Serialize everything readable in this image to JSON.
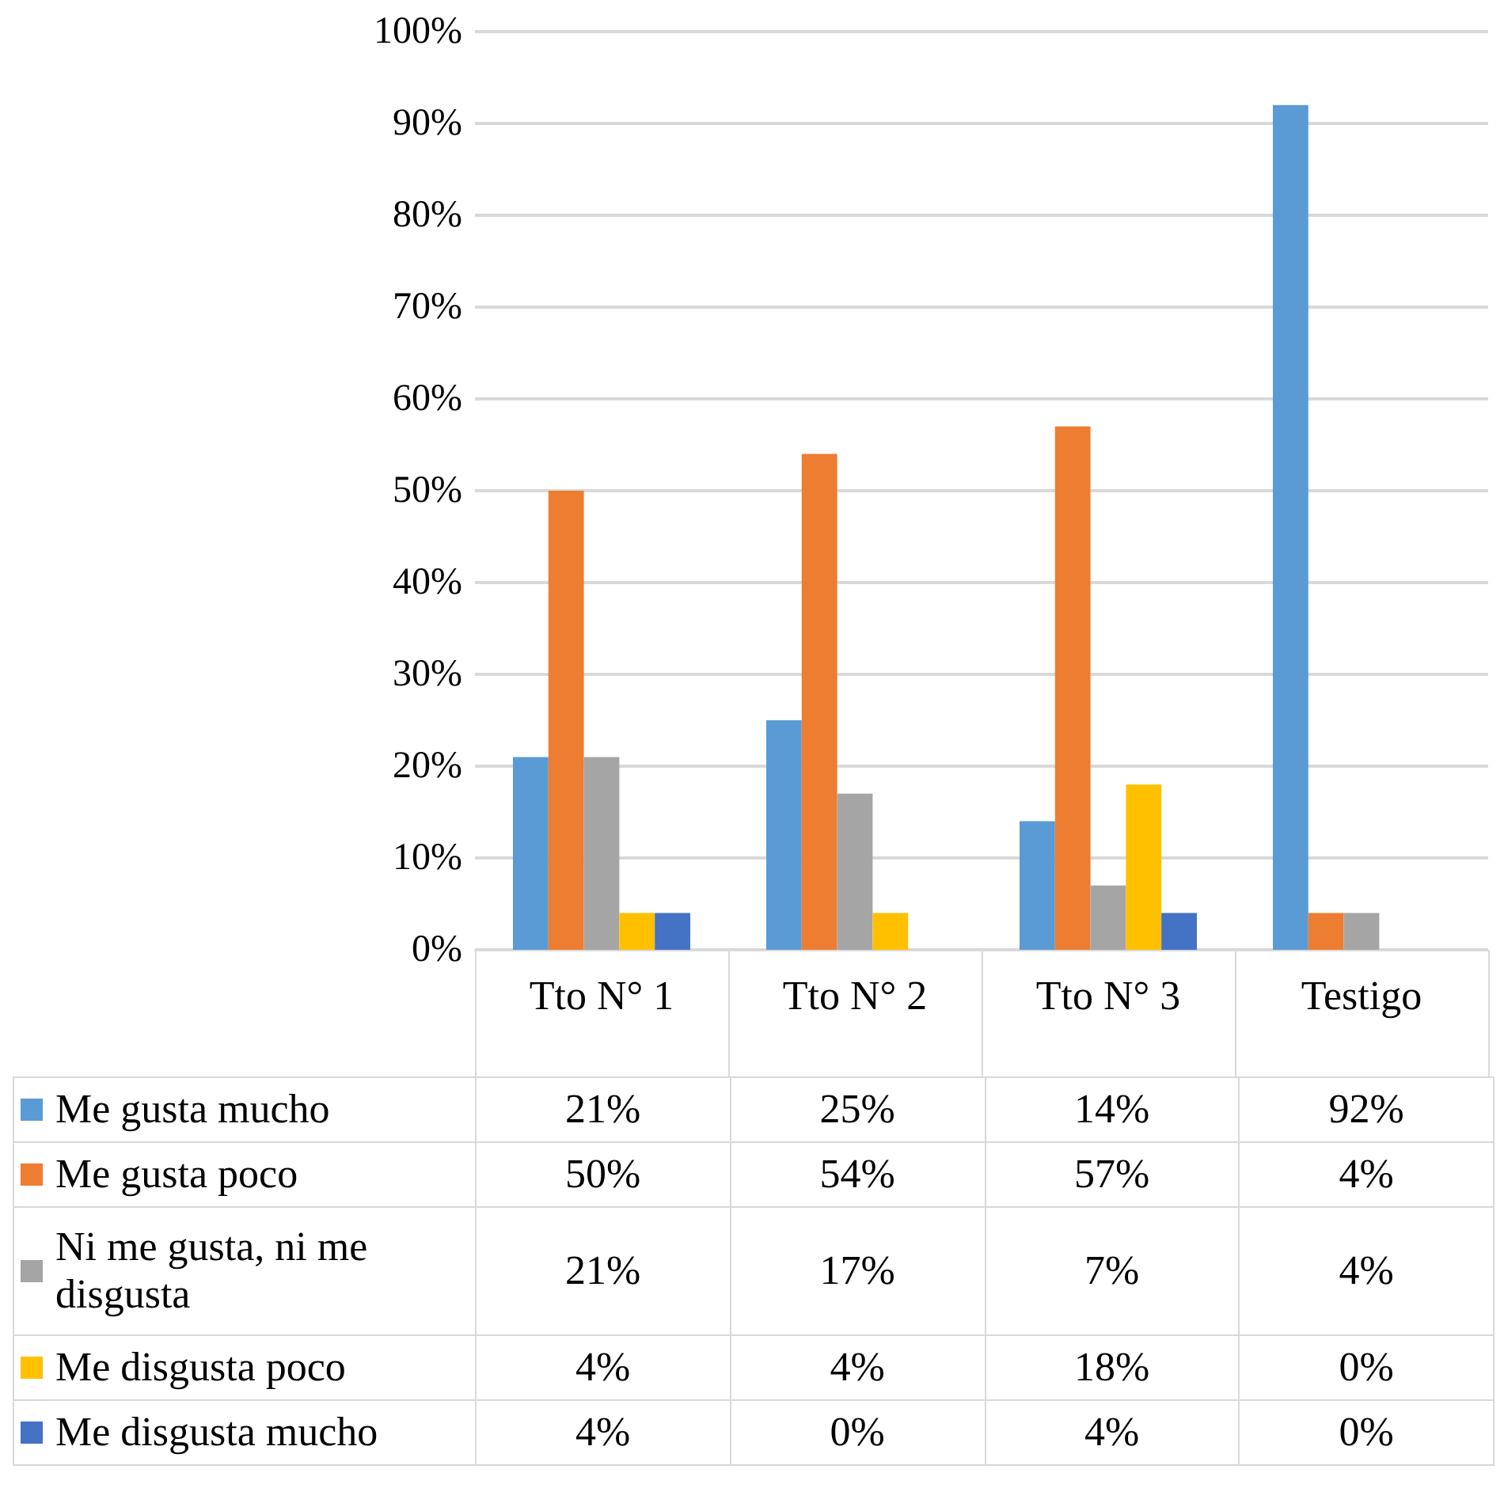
{
  "chart_data": {
    "type": "bar",
    "categories": [
      "Tto N° 1",
      "Tto N° 2",
      "Tto N° 3",
      "Testigo"
    ],
    "series": [
      {
        "name": "Me gusta mucho",
        "color": "#5b9bd5",
        "values": [
          21,
          25,
          14,
          92
        ],
        "value_labels": [
          "21%",
          "25%",
          "14%",
          "92%"
        ]
      },
      {
        "name": "Me gusta poco",
        "color": "#ed7d31",
        "values": [
          50,
          54,
          57,
          4
        ],
        "value_labels": [
          "50%",
          "54%",
          "57%",
          "4%"
        ]
      },
      {
        "name": "Ni me gusta, ni me disgusta",
        "color": "#a5a5a5",
        "values": [
          21,
          17,
          7,
          4
        ],
        "value_labels": [
          "21%",
          "17%",
          "7%",
          "4%"
        ]
      },
      {
        "name": "Me disgusta poco",
        "color": "#ffc000",
        "values": [
          4,
          4,
          18,
          0
        ],
        "value_labels": [
          "4%",
          "4%",
          "18%",
          "0%"
        ]
      },
      {
        "name": "Me disgusta mucho",
        "color": "#4472c4",
        "values": [
          4,
          0,
          4,
          0
        ],
        "value_labels": [
          "4%",
          "0%",
          "4%",
          "0%"
        ]
      }
    ],
    "ylim": [
      0,
      100
    ],
    "yticks": [
      {
        "value": 0,
        "label": "0%"
      },
      {
        "value": 10,
        "label": "10%"
      },
      {
        "value": 20,
        "label": "20%"
      },
      {
        "value": 30,
        "label": "30%"
      },
      {
        "value": 40,
        "label": "40%"
      },
      {
        "value": 50,
        "label": "50%"
      },
      {
        "value": 60,
        "label": "60%"
      },
      {
        "value": 70,
        "label": "70%"
      },
      {
        "value": 80,
        "label": "80%"
      },
      {
        "value": 90,
        "label": "90%"
      },
      {
        "value": 100,
        "label": "100%"
      }
    ],
    "grid": "y",
    "legend": "bottom"
  }
}
